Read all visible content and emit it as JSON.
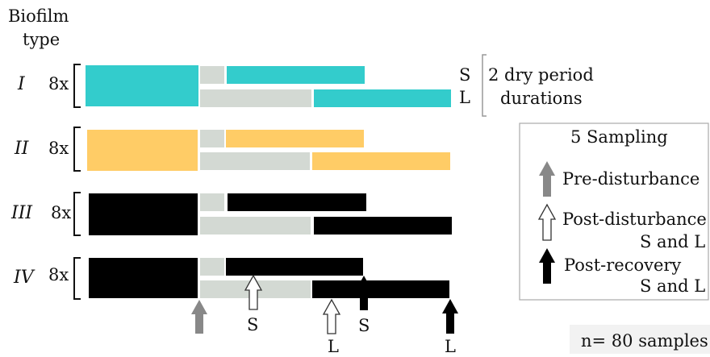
{
  "header": {
    "line1": "Biofilm",
    "line2": "type"
  },
  "replicates_label": "8x",
  "rows": [
    {
      "type": "I",
      "color": "#33cccc"
    },
    {
      "type": "II",
      "color": "#cc6600"
    },
    {
      "type": "III",
      "color": "#ffcc66"
    },
    {
      "type": "IV",
      "color": "#669933"
    }
  ],
  "dry_color": "#d3d9d3",
  "durations": {
    "short": "S",
    "long": "L",
    "line1": "2 dry period",
    "line2": "durations"
  },
  "sampling_box": {
    "title": "5 Sampling",
    "pre": "Pre-disturbance",
    "post_line1": "Post-disturbance",
    "post_line2": "S and L",
    "recovery_line1": "Post-recovery",
    "recovery_line2": "S and L"
  },
  "arrow_labels": {
    "s1": "S",
    "l1": "L",
    "s2": "S",
    "l2": "L"
  },
  "arrow_colors": {
    "pre": "#888888",
    "post": "#ffffff",
    "recovery": "#000000"
  },
  "samples_note": "n= 80 samples"
}
